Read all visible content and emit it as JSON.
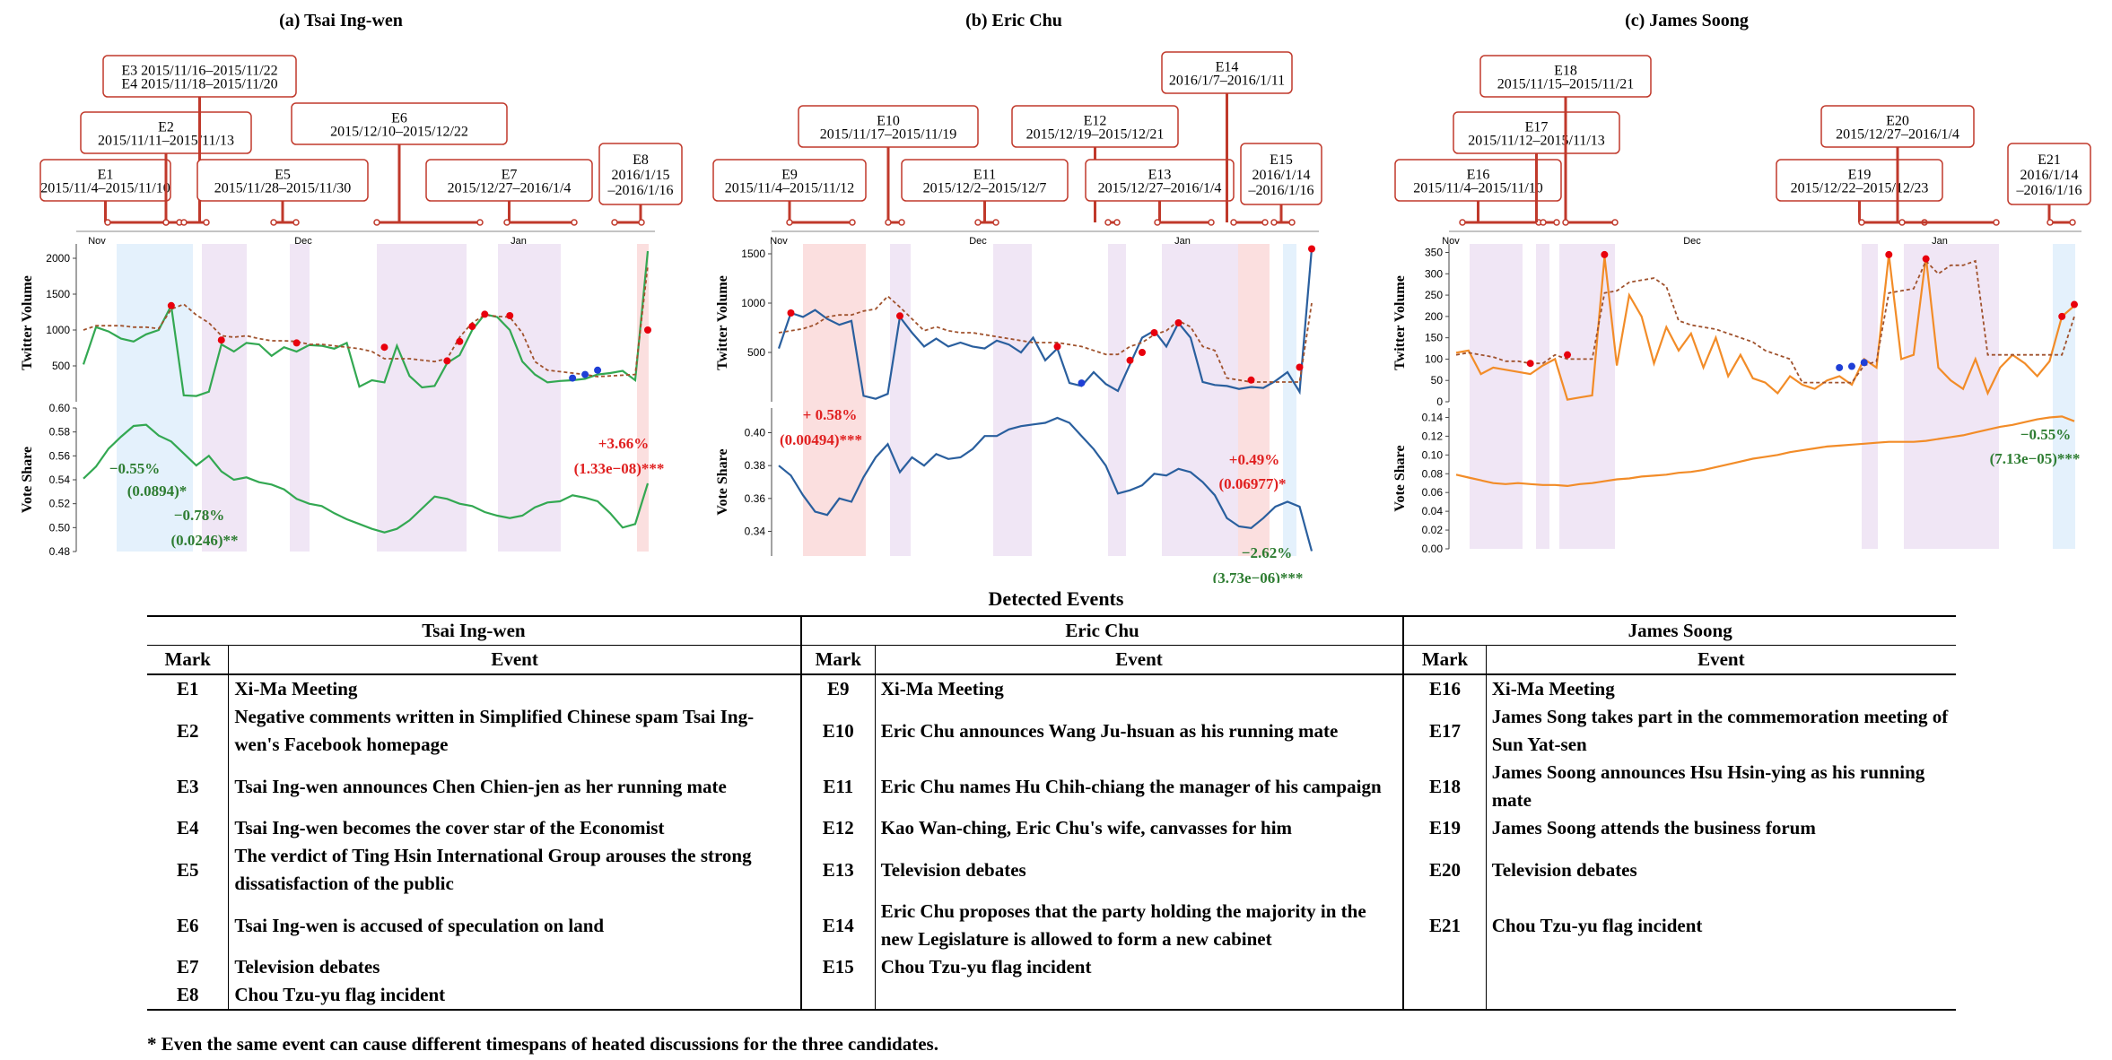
{
  "chart_data": [
    {
      "type": "line",
      "title": "(a) Tsai Ing-wen",
      "month_ticks": [
        "Nov",
        "Dec",
        "Jan"
      ],
      "volume": {
        "ylabel": "Twitter Volume",
        "ylim": [
          0,
          2200
        ],
        "yticks": [
          "500",
          "1000",
          "1500",
          "2000"
        ],
        "series": [
          {
            "values": [
              520,
              1040,
              980,
              880,
              840,
              940,
              1000,
              1340,
              90,
              80,
              140,
              800,
              700,
              820,
              800,
              640,
              760,
              700,
              790,
              780,
              740,
              820,
              210,
              300,
              270,
              780,
              360,
              200,
              220,
              540,
              650,
              1000,
              1220,
              1180,
              1000,
              560,
              380,
              270,
              290,
              300,
              320,
              380,
              400,
              430,
              300,
              2100
            ]
          },
          {
            "values": [
              1000,
              1060,
              1060,
              1060,
              1040,
              1040,
              1020,
              1290,
              1360,
              1210,
              1100,
              920,
              900,
              920,
              880,
              850,
              850,
              840,
              800,
              800,
              780,
              760,
              740,
              700,
              600,
              600,
              600,
              580,
              560,
              600,
              900,
              1100,
              1210,
              1190,
              1180,
              960,
              560,
              440,
              420,
              400,
              380,
              350,
              360,
              370,
              380,
              1900
            ]
          }
        ],
        "highlights_red": [
          [
            7,
            1340
          ],
          [
            11,
            860
          ],
          [
            17,
            820
          ],
          [
            24,
            760
          ],
          [
            29,
            570
          ],
          [
            30,
            840
          ],
          [
            31,
            1050
          ],
          [
            32,
            1220
          ],
          [
            34,
            1200
          ],
          [
            45,
            1000
          ]
        ],
        "highlights_blue": [
          [
            39,
            330
          ],
          [
            40,
            380
          ],
          [
            41,
            440
          ]
        ]
      },
      "share": {
        "ylabel": "Vote Share",
        "ylim": [
          0.48,
          0.6
        ],
        "yticks": [
          "0.48",
          "0.50",
          "0.52",
          "0.54",
          "0.56",
          "0.58",
          "0.60"
        ],
        "values": [
          0.541,
          0.551,
          0.566,
          0.576,
          0.585,
          0.586,
          0.577,
          0.572,
          0.562,
          0.552,
          0.56,
          0.547,
          0.54,
          0.542,
          0.538,
          0.536,
          0.532,
          0.524,
          0.52,
          0.518,
          0.512,
          0.507,
          0.503,
          0.499,
          0.496,
          0.499,
          0.506,
          0.516,
          0.526,
          0.524,
          0.52,
          0.518,
          0.513,
          0.51,
          0.508,
          0.51,
          0.517,
          0.521,
          0.522,
          0.527,
          0.525,
          0.522,
          0.512,
          0.5,
          0.503,
          0.537
        ]
      },
      "events": [
        {
          "text": [
            "E1",
            "2015/11/4–2015/11/10"
          ]
        },
        {
          "text": [
            "E2",
            "2015/11/11–2015/11/13"
          ]
        },
        {
          "text": [
            "E3 2015/11/16–2015/11/22",
            "E4 2015/11/18–2015/11/20"
          ]
        },
        {
          "text": [
            "E5",
            "2015/11/28–2015/11/30"
          ]
        },
        {
          "text": [
            "E6",
            "2015/12/10–2015/12/22"
          ]
        },
        {
          "text": [
            "E7",
            "2015/12/27–2016/1/4"
          ]
        },
        {
          "text": [
            "E8",
            "2016/1/15",
            "–2016/1/16"
          ]
        }
      ],
      "annotations": [
        {
          "text": "−0.55%",
          "color": "green"
        },
        {
          "text": "(0.0894)*",
          "color": "green"
        },
        {
          "text": "−0.78%",
          "color": "green"
        },
        {
          "text": "(0.0246)**",
          "color": "green"
        },
        {
          "text": "+3.66%",
          "color": "red"
        },
        {
          "text": "(1.33e−08)***",
          "color": "red"
        }
      ]
    },
    {
      "type": "line",
      "title": "(b) Eric Chu",
      "month_ticks": [
        "Nov",
        "Dec",
        "Jan"
      ],
      "volume": {
        "ylabel": "Twitter Volume",
        "ylim": [
          0,
          1600
        ],
        "yticks": [
          "500",
          "1000",
          "1500"
        ],
        "series": [
          {
            "values": [
              540,
              900,
              860,
              930,
              840,
              780,
              820,
              60,
              30,
              80,
              860,
              700,
              560,
              640,
              560,
              600,
              560,
              540,
              620,
              580,
              500,
              650,
              420,
              540,
              190,
              160,
              300,
              180,
              110,
              380,
              650,
              720,
              560,
              800,
              650,
              200,
              170,
              160,
              130,
              150,
              140,
              210,
              300,
              100,
              1550
            ]
          },
          {
            "values": [
              700,
              720,
              740,
              780,
              860,
              880,
              880,
              920,
              940,
              1070,
              960,
              840,
              720,
              760,
              720,
              700,
              700,
              680,
              660,
              640,
              620,
              600,
              600,
              600,
              580,
              560,
              520,
              480,
              480,
              560,
              600,
              680,
              720,
              820,
              760,
              560,
              520,
              240,
              220,
              200,
              200,
              200,
              200,
              200,
              1000
            ]
          }
        ],
        "highlights_red": [
          [
            1,
            900
          ],
          [
            10,
            870
          ],
          [
            23,
            560
          ],
          [
            29,
            420
          ],
          [
            30,
            500
          ],
          [
            31,
            700
          ],
          [
            33,
            800
          ],
          [
            39,
            220
          ],
          [
            43,
            350
          ],
          [
            44,
            1550
          ]
        ],
        "highlights_blue": [
          [
            25,
            190
          ]
        ]
      },
      "share": {
        "ylabel": "Vote Share",
        "ylim": [
          0.325,
          0.415
        ],
        "yticks": [
          "0.34",
          "0.36",
          "0.38",
          "0.40"
        ],
        "values": [
          0.38,
          0.374,
          0.362,
          0.352,
          0.35,
          0.36,
          0.358,
          0.373,
          0.385,
          0.393,
          0.376,
          0.385,
          0.38,
          0.387,
          0.384,
          0.385,
          0.39,
          0.398,
          0.398,
          0.402,
          0.404,
          0.405,
          0.406,
          0.409,
          0.406,
          0.398,
          0.39,
          0.38,
          0.363,
          0.365,
          0.368,
          0.375,
          0.374,
          0.378,
          0.376,
          0.37,
          0.362,
          0.348,
          0.343,
          0.342,
          0.348,
          0.355,
          0.358,
          0.355,
          0.328
        ]
      },
      "events": [
        {
          "text": [
            "E9",
            "2015/11/4–2015/11/12"
          ]
        },
        {
          "text": [
            "E10",
            "2015/11/17–2015/11/19"
          ]
        },
        {
          "text": [
            "E11",
            "2015/12/2–2015/12/7"
          ]
        },
        {
          "text": [
            "E12",
            "2015/12/19–2015/12/21"
          ]
        },
        {
          "text": [
            "E13",
            "2015/12/27–2016/1/4"
          ]
        },
        {
          "text": [
            "E14",
            "2016/1/7–2016/1/11"
          ]
        },
        {
          "text": [
            "E15",
            "2016/1/14",
            "–2016/1/16"
          ]
        }
      ],
      "annotations": [
        {
          "text": "+ 0.58%",
          "color": "red"
        },
        {
          "text": "(0.00494)***",
          "color": "red"
        },
        {
          "text": "+0.49%",
          "color": "red"
        },
        {
          "text": "(0.06977)*",
          "color": "red"
        },
        {
          "text": "−2.62%",
          "color": "green"
        },
        {
          "text": "(3.73e−06)***",
          "color": "green"
        }
      ]
    },
    {
      "type": "line",
      "title": "(c) James Soong",
      "month_ticks": [
        "Nov",
        "Dec",
        "Jan"
      ],
      "volume": {
        "ylabel": "Twitter Volume",
        "ylim": [
          0,
          370
        ],
        "yticks": [
          "0",
          "50",
          "100",
          "150",
          "200",
          "250",
          "300",
          "350"
        ],
        "series": [
          {
            "values": [
              115,
              120,
              65,
              80,
              75,
              70,
              65,
              85,
              100,
              5,
              10,
              15,
              340,
              85,
              250,
              200,
              90,
              175,
              120,
              160,
              80,
              150,
              60,
              110,
              55,
              45,
              20,
              60,
              40,
              30,
              50,
              60,
              40,
              100,
              80,
              345,
              100,
              110,
              340,
              80,
              50,
              30,
              100,
              20,
              80,
              110,
              90,
              60,
              95,
              200,
              225
            ]
          },
          {
            "values": [
              110,
              115,
              110,
              105,
              95,
              95,
              90,
              90,
              110,
              100,
              100,
              100,
              255,
              260,
              280,
              285,
              290,
              270,
              190,
              180,
              175,
              170,
              160,
              150,
              140,
              120,
              110,
              100,
              45,
              45,
              45,
              45,
              45,
              85,
              95,
              255,
              260,
              265,
              330,
              300,
              320,
              320,
              330,
              110,
              110,
              110,
              110,
              110,
              110,
              110,
              200
            ]
          }
        ],
        "highlights_red": [
          [
            6,
            90
          ],
          [
            9,
            110
          ],
          [
            12,
            345
          ],
          [
            35,
            345
          ],
          [
            38,
            335
          ],
          [
            49,
            200
          ],
          [
            50,
            228
          ]
        ],
        "highlights_blue": [
          [
            31,
            80
          ],
          [
            32,
            83
          ],
          [
            33,
            92
          ]
        ]
      },
      "share": {
        "ylabel": "Vote Share",
        "ylim": [
          0,
          0.15
        ],
        "yticks": [
          "0.00",
          "0.02",
          "0.04",
          "0.06",
          "0.08",
          "0.10",
          "0.12",
          "0.14"
        ],
        "values": [
          0.079,
          0.076,
          0.073,
          0.07,
          0.069,
          0.07,
          0.069,
          0.068,
          0.068,
          0.067,
          0.069,
          0.07,
          0.072,
          0.074,
          0.075,
          0.077,
          0.078,
          0.079,
          0.081,
          0.082,
          0.084,
          0.087,
          0.09,
          0.093,
          0.096,
          0.098,
          0.1,
          0.103,
          0.105,
          0.107,
          0.109,
          0.11,
          0.111,
          0.112,
          0.113,
          0.114,
          0.114,
          0.114,
          0.115,
          0.117,
          0.119,
          0.121,
          0.124,
          0.127,
          0.13,
          0.132,
          0.135,
          0.138,
          0.14,
          0.141,
          0.136
        ]
      },
      "events": [
        {
          "text": [
            "E16",
            "2015/11/4–2015/11/10"
          ]
        },
        {
          "text": [
            "E17",
            "2015/11/12–2015/11/13"
          ]
        },
        {
          "text": [
            "E18",
            "2015/11/15–2015/11/21"
          ]
        },
        {
          "text": [
            "E19",
            "2015/12/22–2015/12/23"
          ]
        },
        {
          "text": [
            "E20",
            "2015/12/27–2016/1/4"
          ]
        },
        {
          "text": [
            "E21",
            "2016/1/14",
            "–2016/1/16"
          ]
        }
      ],
      "annotations": [
        {
          "text": "−0.55%",
          "color": "green"
        },
        {
          "text": "(7.13e−05)***",
          "color": "green"
        }
      ]
    }
  ],
  "colors": {
    "tsai": "#33a852",
    "chu": "#2a5f9e",
    "soong": "#f28c28",
    "event_box": "#c0392b",
    "trend": "#a0522d",
    "dot_red": "#e8000d",
    "dot_blue": "#1f3fd6",
    "shade_pink": "#eadcf1",
    "shade_blue": "#d8ebfb",
    "shade_red": "#fad2d2",
    "annot_green": "#2e7d32",
    "annot_red": "#e02020"
  },
  "table": {
    "title": "Detected Events",
    "groups": [
      "Tsai Ing-wen",
      "Eric Chu",
      "James Soong"
    ],
    "col_mark": "Mark",
    "col_event": "Event",
    "rows": [
      [
        "E1",
        "Xi-Ma Meeting",
        "E9",
        "Xi-Ma Meeting",
        "E16",
        "Xi-Ma Meeting"
      ],
      [
        "E2",
        "Negative comments written in Simplified Chinese spam Tsai Ing-wen's Facebook homepage",
        "E10",
        "Eric Chu announces Wang Ju-hsuan as his running mate",
        "E17",
        "James Song takes part in the commemoration meeting of Sun Yat-sen"
      ],
      [
        "E3",
        "Tsai Ing-wen announces Chen Chien-jen as her running mate",
        "E11",
        "Eric Chu names Hu Chih-chiang the manager of his campaign",
        "E18",
        "James Soong announces Hsu Hsin-ying as his running mate"
      ],
      [
        "E4",
        "Tsai Ing-wen becomes the cover star of the Economist",
        "E12",
        "Kao Wan-ching, Eric Chu's wife, canvasses for him",
        "E19",
        "James Soong attends the business forum"
      ],
      [
        "E5",
        "The verdict of Ting Hsin International Group arouses the strong dissatisfaction of the public",
        "E13",
        "Television debates",
        "E20",
        "Television debates"
      ],
      [
        "E6",
        "Tsai Ing-wen is accused of speculation on land",
        "E14",
        "Eric Chu proposes that the party holding the majority in the new Legislature is allowed to form a new cabinet",
        "E21",
        "Chou Tzu-yu flag incident"
      ],
      [
        "E7",
        "Television debates",
        "E15",
        "Chou Tzu-yu flag incident",
        "",
        ""
      ],
      [
        "E8",
        "Chou Tzu-yu flag incident",
        "",
        "",
        "",
        ""
      ]
    ],
    "footnote": "* Even the same event can cause different timespans of heated discussions for the three candidates."
  }
}
